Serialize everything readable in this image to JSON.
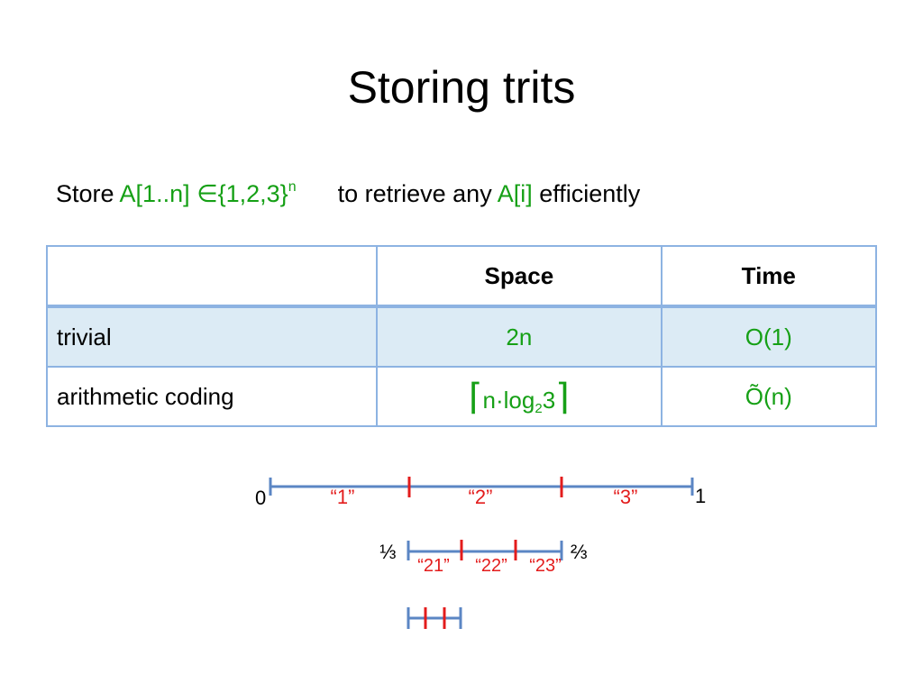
{
  "slide": {
    "title": "Storing trits",
    "statement": {
      "prefix": "Store ",
      "array": "A[1..n] ∈{1,2,3}",
      "exponent": "n",
      "middle": "to retrieve any ",
      "element": "A[i]",
      "suffix": " efficiently"
    }
  },
  "table": {
    "headers": [
      "",
      "Space",
      "Time"
    ],
    "rows": [
      {
        "name": "trivial",
        "space": "2n",
        "time": "O(1)"
      },
      {
        "name": "arithmetic coding",
        "space_left_bracket": "⌈",
        "space_main": "n·log",
        "space_sub": "2",
        "space_tail": "3",
        "space_right_bracket": "⌉",
        "time": "Õ(n)"
      }
    ]
  },
  "diagram": {
    "colors": {
      "interval": "#5b86c4",
      "divider": "#e31c1c"
    },
    "level1": {
      "left": "0",
      "right": "1",
      "labels": [
        "“1”",
        "“2”",
        "“3”"
      ]
    },
    "level2": {
      "left": "⅓",
      "right": "⅔",
      "labels": [
        "“21”",
        "“22”",
        "“23”"
      ]
    }
  }
}
